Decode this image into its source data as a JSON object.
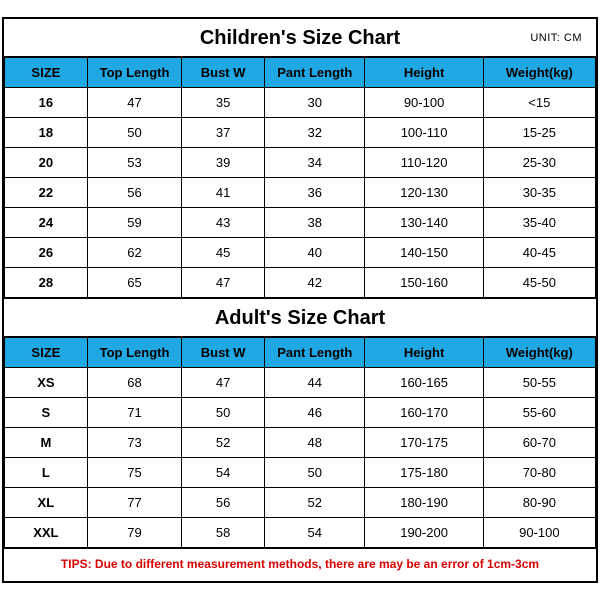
{
  "styling": {
    "header_bg": "#1fa8e4",
    "border_color": "#000000",
    "tips_color": "#d80000",
    "title_fontsize": 20,
    "cell_fontsize": 13,
    "unit_fontsize": 11
  },
  "children": {
    "title": "Children's Size Chart",
    "unit_label": "UNIT: CM",
    "columns": [
      "SIZE",
      "Top Length",
      "Bust W",
      "Pant Length",
      "Height",
      "Weight(kg)"
    ],
    "rows": [
      [
        "16",
        "47",
        "35",
        "30",
        "90-100",
        "<15"
      ],
      [
        "18",
        "50",
        "37",
        "32",
        "100-110",
        "15-25"
      ],
      [
        "20",
        "53",
        "39",
        "34",
        "110-120",
        "25-30"
      ],
      [
        "22",
        "56",
        "41",
        "36",
        "120-130",
        "30-35"
      ],
      [
        "24",
        "59",
        "43",
        "38",
        "130-140",
        "35-40"
      ],
      [
        "26",
        "62",
        "45",
        "40",
        "140-150",
        "40-45"
      ],
      [
        "28",
        "65",
        "47",
        "42",
        "150-160",
        "45-50"
      ]
    ]
  },
  "adult": {
    "title": "Adult's Size Chart",
    "columns": [
      "SIZE",
      "Top Length",
      "Bust W",
      "Pant Length",
      "Height",
      "Weight(kg)"
    ],
    "rows": [
      [
        "XS",
        "68",
        "47",
        "44",
        "160-165",
        "50-55"
      ],
      [
        "S",
        "71",
        "50",
        "46",
        "160-170",
        "55-60"
      ],
      [
        "M",
        "73",
        "52",
        "48",
        "170-175",
        "60-70"
      ],
      [
        "L",
        "75",
        "54",
        "50",
        "175-180",
        "70-80"
      ],
      [
        "XL",
        "77",
        "56",
        "52",
        "180-190",
        "80-90"
      ],
      [
        "XXL",
        "79",
        "58",
        "54",
        "190-200",
        "90-100"
      ]
    ]
  },
  "tips": "TIPS: Due to different measurement methods, there are may be an error of 1cm-3cm"
}
